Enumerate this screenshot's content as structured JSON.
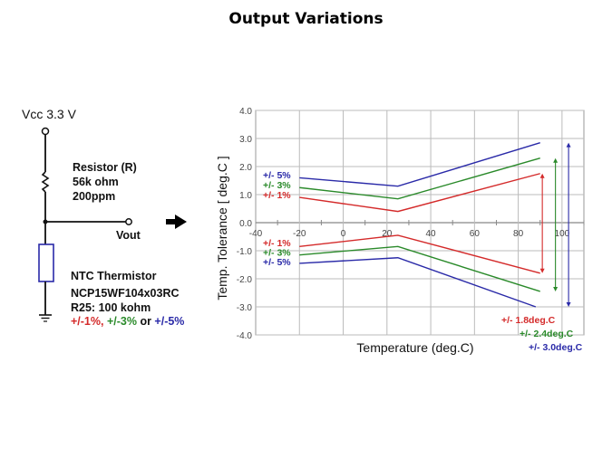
{
  "title": "Output Variations",
  "circuit": {
    "vcc_label": "Vcc 3.3 V",
    "resistor_lines": [
      "Resistor (R)",
      "56k ohm",
      "200ppm"
    ],
    "vout_label": "Vout",
    "thermistor_lines": [
      "NTC Thermistor",
      "NCP15WF104x03RC",
      "R25: 100 kohm"
    ],
    "tolerance_parts": [
      {
        "text": "+/-1%,",
        "color": "#d42a2a"
      },
      {
        "text": " +/-3%",
        "color": "#2a8a2a"
      },
      {
        "text": " or ",
        "color": "#111111"
      },
      {
        "text": "+/-5%",
        "color": "#2a2aa8"
      }
    ]
  },
  "chart_data": {
    "type": "line",
    "title": "",
    "xlabel": "Temperature (deg.C)",
    "ylabel": "Temp. Tolerance  [ deg.C ]",
    "xlim": [
      -40,
      110
    ],
    "ylim": [
      -4.0,
      4.0
    ],
    "xticks": [
      -40,
      -20,
      0,
      20,
      40,
      60,
      80,
      100
    ],
    "yticks": [
      "4.0",
      "3.0",
      "2.0",
      "1.0",
      "0.0",
      "-1.0",
      "-2.0",
      "-3.0",
      "-4.0"
    ],
    "grid": true,
    "series": [
      {
        "name": "+/- 5%",
        "color": "#2a2aa8",
        "upper": [
          [
            -20,
            1.6
          ],
          [
            25,
            1.3
          ],
          [
            90,
            2.85
          ]
        ],
        "lower": [
          [
            -20,
            -1.45
          ],
          [
            25,
            -1.25
          ],
          [
            88,
            -3.0
          ]
        ],
        "range_label": "+/- 3.0deg.C",
        "arrow_x": 103
      },
      {
        "name": "+/- 3%",
        "color": "#2a8a2a",
        "upper": [
          [
            -20,
            1.25
          ],
          [
            25,
            0.85
          ],
          [
            90,
            2.3
          ]
        ],
        "lower": [
          [
            -20,
            -1.15
          ],
          [
            25,
            -0.85
          ],
          [
            90,
            -2.45
          ]
        ],
        "range_label": "+/- 2.4deg.C",
        "arrow_x": 97
      },
      {
        "name": "+/- 1%",
        "color": "#d42a2a",
        "upper": [
          [
            -20,
            0.9
          ],
          [
            25,
            0.4
          ],
          [
            90,
            1.75
          ]
        ],
        "lower": [
          [
            -20,
            -0.85
          ],
          [
            25,
            -0.45
          ],
          [
            90,
            -1.8
          ]
        ],
        "range_label": "+/- 1.8deg.C",
        "arrow_x": 91
      }
    ],
    "upper_legend_order": [
      "+/- 5%",
      "+/- 3%",
      "+/- 1%"
    ],
    "lower_legend_order": [
      "+/- 1%",
      "+/- 3%",
      "+/- 5%"
    ]
  }
}
